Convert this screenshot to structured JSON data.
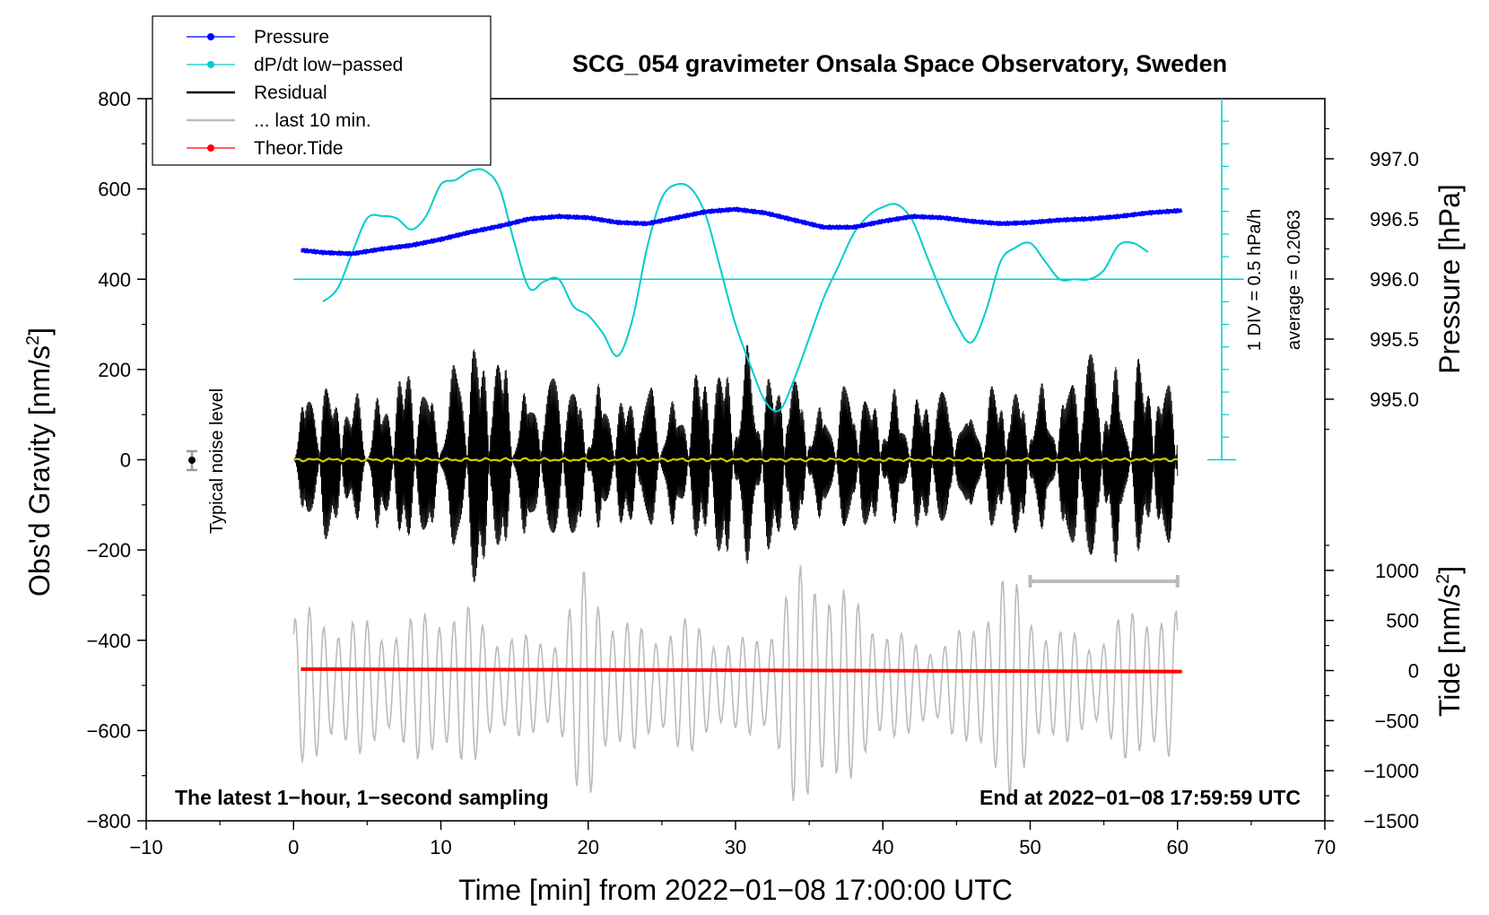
{
  "chart_data": {
    "type": "line",
    "title": "SCG_054 gravimeter Onsala Space Observatory, Sweden",
    "xlabel": "Time [min] from 2022−01−08 17:00:00 UTC",
    "ylabel_left": "Obs'd Gravity [nm/s",
    "ylabel_unit_sup": "2",
    "ylabel_right_pressure": "Pressure [hPa]",
    "ylabel_right_tide": "Tide [nm/s",
    "xlim": [
      -10,
      70
    ],
    "ylim_left": [
      -800,
      800
    ],
    "x_ticks": [
      -10,
      0,
      10,
      20,
      30,
      40,
      50,
      60,
      70
    ],
    "x_tick_labels": [
      "−10",
      "0",
      "10",
      "20",
      "30",
      "40",
      "50",
      "60",
      "70"
    ],
    "y_ticks": [
      800,
      600,
      400,
      200,
      0,
      -200,
      -400,
      -600,
      -800
    ],
    "y_tick_labels": [
      "800",
      "600",
      "400",
      "200",
      "0",
      "−200",
      "−400",
      "−600",
      "−800"
    ],
    "pressure_axis": {
      "ticks": [
        997.0,
        996.5,
        996.0,
        995.5,
        995.0
      ],
      "tick_labels": [
        "997.0",
        "996.5",
        "996.0",
        "995.5",
        "995.0"
      ],
      "range": [
        994.5,
        997.5
      ]
    },
    "tide_axis": {
      "ticks": [
        1000,
        500,
        0,
        -500,
        -1000,
        -1500
      ],
      "tick_labels": [
        "1000",
        "500",
        "0",
        "−500",
        "−1000",
        "−1500"
      ],
      "range": [
        -1500,
        1500
      ]
    },
    "legend": [
      {
        "label": "Pressure",
        "color": "#0000ff",
        "marker": true
      },
      {
        "label": "dP/dt low−passed",
        "color": "#00cccc",
        "marker": true
      },
      {
        "label": "Residual",
        "color": "#000000",
        "marker": false
      },
      {
        "label": "... last 10 min.",
        "color": "#bbbbbb",
        "marker": false
      },
      {
        "label": "Theor.Tide",
        "color": "#ff0000",
        "marker": true
      }
    ],
    "dpdt_scale_label": "1 DIV = 0.5 hPa/h",
    "dpdt_average_label": "average = 0.2063",
    "noise_label": "Typical noise level",
    "bottom_left_text": "The latest 1−hour, 1−second sampling",
    "bottom_right_text": "End at 2022−01−08 17:59:59 UTC",
    "last10_range_min": [
      50,
      60
    ],
    "series": [
      {
        "name": "Pressure",
        "axis": "pressure",
        "color": "#0000ff",
        "x": [
          0.5,
          2,
          4,
          6,
          8,
          10,
          12,
          14,
          16,
          18,
          20,
          22,
          24,
          26,
          28,
          30,
          32,
          34,
          36,
          38,
          40,
          42,
          44,
          46,
          48,
          50,
          52,
          54,
          56,
          58,
          60.3
        ],
        "values": [
          996.24,
          996.22,
          996.21,
          996.25,
          996.28,
          996.33,
          996.39,
          996.44,
          996.5,
          996.52,
          996.51,
          996.47,
          996.46,
          996.51,
          996.56,
          996.58,
          996.55,
          996.49,
          996.43,
          996.43,
          996.48,
          996.52,
          996.51,
          996.48,
          996.46,
          996.47,
          996.49,
          996.5,
          996.52,
          996.55,
          996.57
        ]
      },
      {
        "name": "dP/dt low-passed",
        "axis": "left",
        "color": "#00cccc",
        "x": [
          2,
          3,
          4,
          5,
          6,
          7,
          8,
          9,
          10,
          11,
          12,
          13,
          14,
          15,
          16,
          17,
          18,
          19,
          20,
          21,
          22,
          23,
          24,
          25,
          26,
          27,
          28,
          29,
          30,
          31,
          32,
          33,
          34,
          35,
          36,
          37,
          38,
          39,
          40,
          41,
          42,
          43,
          44,
          45,
          46,
          47,
          48,
          49,
          50,
          51,
          52,
          53,
          54,
          55,
          56,
          57,
          58
        ],
        "values": [
          350,
          380,
          460,
          535,
          540,
          535,
          510,
          540,
          610,
          620,
          640,
          640,
          600,
          480,
          380,
          395,
          400,
          340,
          320,
          280,
          230,
          310,
          470,
          580,
          610,
          600,
          540,
          420,
          300,
          210,
          130,
          110,
          180,
          270,
          360,
          430,
          500,
          540,
          560,
          565,
          530,
          450,
          370,
          300,
          260,
          330,
          440,
          470,
          480,
          440,
          400,
          400,
          400,
          420,
          475,
          480,
          460
        ]
      },
      {
        "name": "Residual",
        "axis": "left",
        "color": "#000000",
        "x_range": [
          0,
          60
        ],
        "envelope_min": [
          0,
          2,
          4,
          6,
          8,
          10,
          12,
          14,
          16,
          18,
          20,
          22,
          24,
          26,
          28,
          30,
          32,
          34,
          36,
          38,
          40,
          42,
          44,
          46,
          48,
          50,
          52,
          54,
          56,
          58,
          60
        ],
        "envelope": [
          150,
          190,
          160,
          170,
          200,
          210,
          280,
          260,
          200,
          180,
          210,
          150,
          160,
          170,
          200,
          280,
          220,
          190,
          150,
          170,
          170,
          150,
          160,
          150,
          170,
          170,
          210,
          240,
          240,
          220,
          180
        ]
      },
      {
        "name": "Mean residual",
        "axis": "left",
        "color": "#cccc00",
        "x": [
          0,
          60
        ],
        "values": [
          0,
          0
        ]
      },
      {
        "name": "... last 10 min.",
        "axis": "tide",
        "color": "#bbbbbb",
        "x_range": [
          0,
          60
        ],
        "envelope_min": [
          0,
          2,
          4,
          6,
          8,
          10,
          12,
          14,
          16,
          18,
          20,
          22,
          24,
          26,
          28,
          30,
          32,
          34,
          36,
          38,
          40,
          42,
          44,
          46,
          48,
          50,
          52,
          54,
          56,
          58,
          60
        ],
        "envelope": [
          800,
          780,
          700,
          650,
          700,
          900,
          800,
          600,
          500,
          600,
          1300,
          700,
          600,
          700,
          650,
          450,
          600,
          1200,
          1300,
          900,
          700,
          450,
          500,
          600,
          1300,
          800,
          600,
          500,
          700,
          900,
          750
        ]
      },
      {
        "name": "Theor.Tide",
        "axis": "tide",
        "color": "#ff0000",
        "x": [
          0.5,
          60.3
        ],
        "values": [
          15,
          -10
        ]
      }
    ]
  }
}
